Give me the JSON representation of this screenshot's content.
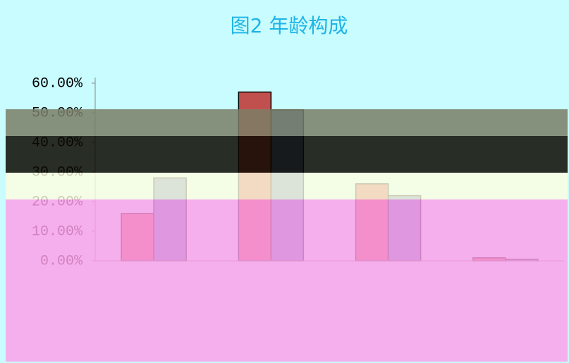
{
  "chart_data": {
    "type": "bar",
    "title": "图2 年龄构成",
    "categories": [
      null,
      null,
      null,
      null
    ],
    "series": [
      {
        "color": "#c0504d",
        "values": [
          16,
          57,
          26,
          1
        ]
      },
      {
        "color": "#4f81bd",
        "values": [
          28,
          51,
          22,
          0.5
        ]
      }
    ],
    "ylim": [
      0,
      60
    ],
    "yticks": [
      {
        "value": 0,
        "label": "0.00%"
      },
      {
        "value": 10,
        "label": "10.00%"
      },
      {
        "value": 20,
        "label": "20.00%"
      },
      {
        "value": 30,
        "label": "30.00%"
      },
      {
        "value": 40,
        "label": "40.00%"
      },
      {
        "value": 50,
        "label": "50.00%"
      },
      {
        "value": 60,
        "label": "60.00%"
      }
    ]
  }
}
